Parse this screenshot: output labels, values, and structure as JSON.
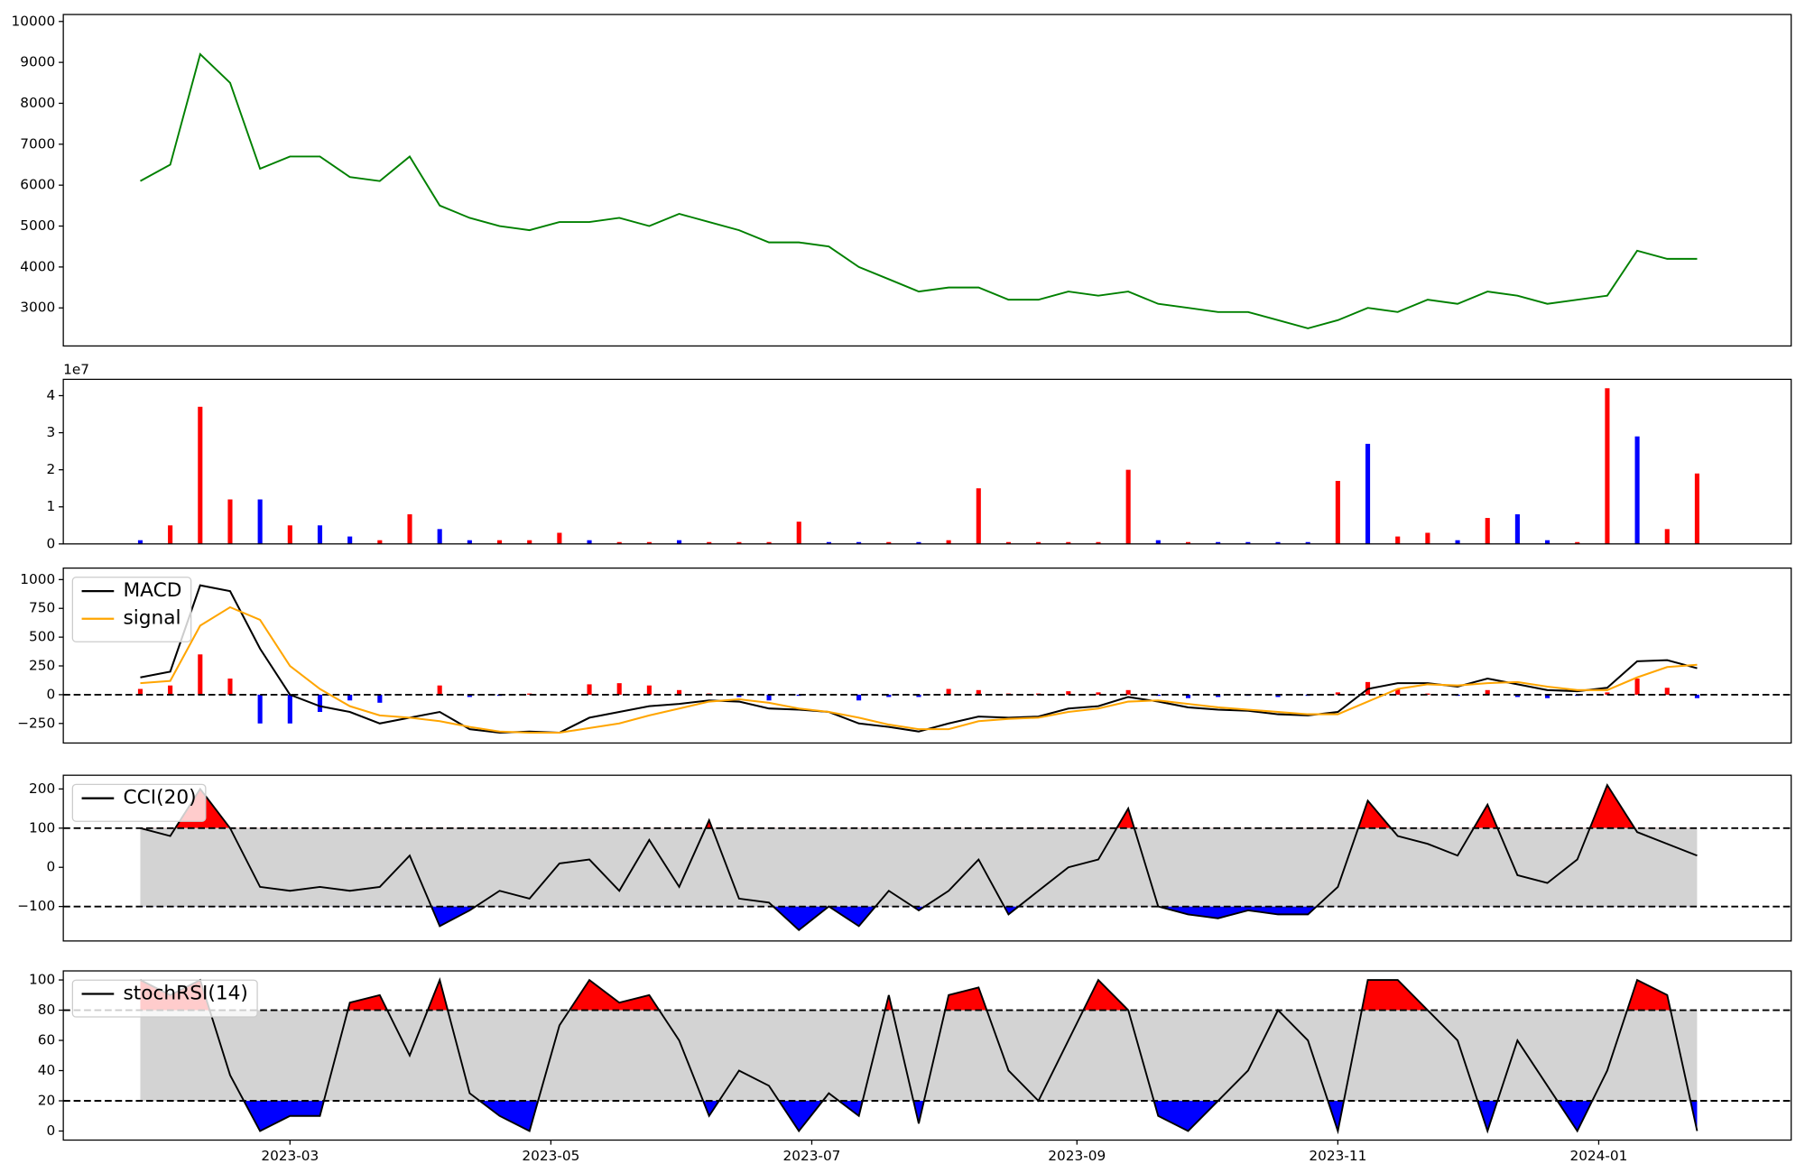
{
  "chart_data": [
    {
      "type": "line",
      "color": "green",
      "x": [
        19382,
        19389,
        19396,
        19403,
        19410,
        19417,
        19424,
        19431,
        19438,
        19445,
        19452,
        19459,
        19466,
        19473,
        19480,
        19487,
        19494,
        19501,
        19508,
        19515,
        19522,
        19529,
        19536,
        19543,
        19550,
        19557,
        19564,
        19571,
        19578,
        19585,
        19592,
        19599,
        19606,
        19613,
        19620,
        19627,
        19634,
        19641,
        19648,
        19655,
        19662,
        19669,
        19676,
        19683,
        19690,
        19697,
        19704,
        19711,
        19718,
        19725,
        19732,
        19739,
        19746
      ],
      "values": [
        6100,
        6500,
        9200,
        8500,
        6400,
        6700,
        6700,
        6200,
        6100,
        6700,
        5500,
        5200,
        5000,
        4900,
        5100,
        5100,
        5200,
        5000,
        5300,
        5100,
        4900,
        4600,
        4600,
        4500,
        4000,
        3700,
        3400,
        3500,
        3500,
        3200,
        3200,
        3400,
        3300,
        3400,
        3100,
        3000,
        2900,
        2900,
        2700,
        2500,
        2700,
        3000,
        2900,
        3200,
        3100,
        3400,
        3300,
        3100,
        3200,
        3300,
        4400,
        4200,
        4200
      ],
      "xlim": [
        19364,
        19768
      ],
      "ylim": [
        2070,
        10170
      ],
      "yticks": [
        3000,
        4000,
        5000,
        6000,
        7000,
        8000,
        9000,
        10000
      ]
    },
    {
      "type": "bar",
      "offset_label": "1e7",
      "x": [
        19382,
        19389,
        19396,
        19403,
        19410,
        19417,
        19424,
        19431,
        19438,
        19445,
        19452,
        19459,
        19466,
        19473,
        19480,
        19487,
        19494,
        19501,
        19508,
        19515,
        19522,
        19529,
        19536,
        19543,
        19550,
        19557,
        19564,
        19571,
        19578,
        19585,
        19592,
        19599,
        19606,
        19613,
        19620,
        19627,
        19634,
        19641,
        19648,
        19655,
        19662,
        19669,
        19676,
        19683,
        19690,
        19697,
        19704,
        19711,
        19718,
        19725,
        19732,
        19739,
        19746
      ],
      "values": [
        0.1,
        0.5,
        3.7,
        1.2,
        1.2,
        0.5,
        0.5,
        0.2,
        0.1,
        0.8,
        0.4,
        0.1,
        0.1,
        0.1,
        0.3,
        0.1,
        0.05,
        0.05,
        0.1,
        0.05,
        0.05,
        0.05,
        0.6,
        0.05,
        0.05,
        0.05,
        0.05,
        0.1,
        1.5,
        0.05,
        0.05,
        0.05,
        0.05,
        2.0,
        0.1,
        0.05,
        0.05,
        0.05,
        0.05,
        0.05,
        1.7,
        2.7,
        0.2,
        0.3,
        0.1,
        0.7,
        0.8,
        0.1,
        0.05,
        4.2,
        2.9,
        0.4,
        1.9
      ],
      "colors": [
        "blue",
        "red",
        "red",
        "red",
        "blue",
        "red",
        "blue",
        "blue",
        "red",
        "red",
        "blue",
        "blue",
        "red",
        "red",
        "red",
        "blue",
        "red",
        "red",
        "blue",
        "red",
        "red",
        "red",
        "red",
        "blue",
        "blue",
        "red",
        "blue",
        "red",
        "red",
        "red",
        "red",
        "red",
        "red",
        "red",
        "blue",
        "red",
        "blue",
        "blue",
        "blue",
        "blue",
        "red",
        "blue",
        "red",
        "red",
        "blue",
        "red",
        "blue",
        "blue",
        "red",
        "red",
        "blue",
        "red",
        "red"
      ],
      "xlim": [
        19364,
        19768
      ],
      "ylim": [
        0,
        4.44
      ],
      "yticks": [
        0,
        1,
        2,
        3,
        4
      ]
    },
    {
      "type": "macd",
      "x": [
        19382,
        19389,
        19396,
        19403,
        19410,
        19417,
        19424,
        19431,
        19438,
        19445,
        19452,
        19459,
        19466,
        19473,
        19480,
        19487,
        19494,
        19501,
        19508,
        19515,
        19522,
        19529,
        19536,
        19543,
        19550,
        19557,
        19564,
        19571,
        19578,
        19585,
        19592,
        19599,
        19606,
        19613,
        19620,
        19627,
        19634,
        19641,
        19648,
        19655,
        19662,
        19669,
        19676,
        19683,
        19690,
        19697,
        19704,
        19711,
        19718,
        19725,
        19732,
        19739,
        19746
      ],
      "series": [
        {
          "name": "MACD",
          "color": "black",
          "values": [
            150,
            200,
            950,
            900,
            400,
            0,
            -100,
            -150,
            -250,
            -200,
            -150,
            -300,
            -330,
            -320,
            -330,
            -200,
            -150,
            -100,
            -80,
            -50,
            -60,
            -120,
            -130,
            -150,
            -250,
            -280,
            -320,
            -250,
            -190,
            -200,
            -190,
            -120,
            -100,
            -20,
            -60,
            -110,
            -130,
            -140,
            -170,
            -180,
            -150,
            50,
            100,
            100,
            70,
            140,
            90,
            40,
            30,
            60,
            290,
            300,
            230
          ]
        },
        {
          "name": "signal",
          "color": "orange",
          "values": [
            100,
            120,
            600,
            760,
            650,
            250,
            50,
            -100,
            -180,
            -200,
            -230,
            -280,
            -320,
            -330,
            -330,
            -290,
            -250,
            -180,
            -120,
            -60,
            -40,
            -70,
            -120,
            -150,
            -200,
            -260,
            -300,
            -300,
            -230,
            -210,
            -200,
            -150,
            -120,
            -60,
            -50,
            -80,
            -110,
            -130,
            -150,
            -170,
            -170,
            -60,
            50,
            90,
            80,
            100,
            110,
            70,
            40,
            40,
            150,
            240,
            260
          ]
        }
      ],
      "histogram": [
        50,
        80,
        350,
        140,
        -250,
        -250,
        -150,
        -50,
        -70,
        0,
        80,
        -20,
        -10,
        10,
        0,
        90,
        100,
        80,
        40,
        10,
        -20,
        -50,
        -10,
        0,
        -50,
        -20,
        -20,
        50,
        40,
        10,
        10,
        30,
        20,
        40,
        -10,
        -30,
        -20,
        -10,
        -20,
        -10,
        20,
        110,
        50,
        10,
        -10,
        40,
        -20,
        -30,
        -10,
        20,
        140,
        60,
        -30
      ],
      "up_color": "red",
      "down_color": "blue",
      "hlines": [
        0
      ],
      "xlim": [
        19364,
        19768
      ],
      "ylim": [
        -420,
        1100
      ],
      "yticks": [
        {
          "value": -250,
          "label": "−250"
        },
        0,
        250,
        500,
        750,
        1000
      ]
    },
    {
      "type": "oscillator",
      "x": [
        19382,
        19389,
        19396,
        19403,
        19410,
        19417,
        19424,
        19431,
        19438,
        19445,
        19452,
        19459,
        19466,
        19473,
        19480,
        19487,
        19494,
        19501,
        19508,
        19515,
        19522,
        19529,
        19536,
        19543,
        19550,
        19557,
        19564,
        19571,
        19578,
        19585,
        19592,
        19599,
        19606,
        19613,
        19620,
        19627,
        19634,
        19641,
        19648,
        19655,
        19662,
        19669,
        19676,
        19683,
        19690,
        19697,
        19704,
        19711,
        19718,
        19725,
        19732,
        19739,
        19746
      ],
      "series": [
        {
          "name": "CCI(20)",
          "color": "black",
          "values": [
            100,
            80,
            200,
            100,
            -50,
            -60,
            -50,
            -60,
            -50,
            30,
            -150,
            -110,
            -60,
            -80,
            10,
            20,
            -60,
            70,
            -50,
            120,
            -80,
            -90,
            -160,
            -100,
            -150,
            -60,
            -110,
            -60,
            20,
            -120,
            -60,
            0,
            20,
            150,
            -100,
            -120,
            -130,
            -110,
            -120,
            -120,
            -50,
            170,
            80,
            60,
            30,
            160,
            -20,
            -40,
            20,
            210,
            90,
            60,
            30
          ]
        }
      ],
      "hlines": [
        100,
        -100
      ],
      "fill_colors": {
        "above": "red",
        "below": "blue",
        "band": "lightgray"
      },
      "xlim": [
        19364,
        19768
      ],
      "ylim": [
        -188,
        235
      ],
      "yticks": [
        {
          "value": -100,
          "label": "−100"
        },
        0,
        100,
        200
      ]
    },
    {
      "type": "oscillator",
      "x": [
        19382,
        19389,
        19396,
        19403,
        19410,
        19417,
        19424,
        19431,
        19438,
        19445,
        19452,
        19459,
        19466,
        19473,
        19480,
        19487,
        19494,
        19501,
        19508,
        19515,
        19522,
        19529,
        19536,
        19543,
        19550,
        19557,
        19564,
        19571,
        19578,
        19585,
        19592,
        19599,
        19606,
        19613,
        19620,
        19627,
        19634,
        19641,
        19648,
        19655,
        19662,
        19669,
        19676,
        19683,
        19690,
        19697,
        19704,
        19711,
        19718,
        19725,
        19732,
        19739,
        19746
      ],
      "series": [
        {
          "name": "stochRSI(14)",
          "color": "black",
          "values": [
            100,
            90,
            100,
            37,
            0,
            10,
            10,
            85,
            90,
            50,
            100,
            25,
            10,
            0,
            70,
            100,
            85,
            90,
            60,
            10,
            40,
            30,
            0,
            25,
            10,
            90,
            5,
            90,
            95,
            40,
            20,
            60,
            100,
            80,
            10,
            0,
            20,
            40,
            80,
            60,
            0,
            100,
            100,
            80,
            60,
            0,
            60,
            30,
            0,
            40,
            100,
            90,
            0
          ]
        }
      ],
      "hlines": [
        80,
        20
      ],
      "fill_colors": {
        "above": "red",
        "below": "blue",
        "band": "lightgray"
      },
      "xlim": [
        19364,
        19768
      ],
      "ylim": [
        -6,
        106
      ],
      "yticks": [
        0,
        20,
        40,
        60,
        80,
        100
      ],
      "xticks": [
        {
          "value": 19417,
          "label": "2023-03"
        },
        {
          "value": 19478,
          "label": "2023-05"
        },
        {
          "value": 19539,
          "label": "2023-07"
        },
        {
          "value": 19601,
          "label": "2023-09"
        },
        {
          "value": 19662,
          "label": "2023-11"
        },
        {
          "value": 19723,
          "label": "2024-01"
        }
      ]
    }
  ]
}
